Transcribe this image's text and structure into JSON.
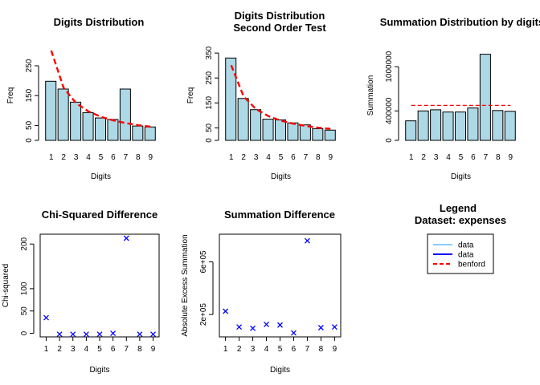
{
  "colors": {
    "bar_fill": "#add8e6",
    "stroke": "#000000",
    "benford": "#ff0000",
    "data_light": "#87cefa",
    "data_dark": "#0000ff",
    "points": "#0000ff"
  },
  "chart_data": [
    {
      "type": "bar",
      "title": [
        "Digits Distribution"
      ],
      "xlabel": "Digits",
      "ylabel": "Freq",
      "categories": [
        "1",
        "2",
        "3",
        "4",
        "5",
        "6",
        "7",
        "8",
        "9"
      ],
      "values": [
        198,
        172,
        128,
        93,
        75,
        70,
        172,
        48,
        45
      ],
      "benford": [
        301,
        176,
        125,
        97,
        79,
        67,
        58,
        51,
        46
      ],
      "ylim": [
        0,
        301
      ],
      "yticks": [
        0,
        50,
        150,
        250
      ],
      "yticklabels": [
        "0",
        "50",
        "150",
        "250"
      ]
    },
    {
      "type": "bar",
      "title": [
        "Digits Distribution",
        "Second Order Test"
      ],
      "xlabel": "Digits",
      "ylabel": "Freq",
      "categories": [
        "1",
        "2",
        "3",
        "4",
        "5",
        "6",
        "7",
        "8",
        "9"
      ],
      "values": [
        330,
        168,
        123,
        85,
        82,
        70,
        62,
        47,
        41
      ],
      "benford": [
        301,
        176,
        125,
        97,
        79,
        67,
        58,
        51,
        46
      ],
      "ylim": [
        0,
        360
      ],
      "yticks": [
        0,
        50,
        150,
        250,
        350
      ],
      "yticklabels": [
        "0",
        "50",
        "150",
        "250",
        "350"
      ]
    },
    {
      "type": "bar",
      "title": [
        "Summation Distribution by digits"
      ],
      "xlabel": "Digits",
      "ylabel": "Summation",
      "categories": [
        "1",
        "2",
        "3",
        "4",
        "5",
        "6",
        "7",
        "8",
        "9"
      ],
      "values": [
        265000,
        400000,
        415000,
        385000,
        385000,
        440000,
        1170000,
        405000,
        395000
      ],
      "benford_line": 475000,
      "ylim": [
        0,
        1220000
      ],
      "yticks": [
        0,
        400000,
        1000000
      ],
      "yticklabels": [
        "0",
        "400000",
        "1000000"
      ]
    },
    {
      "type": "scatter",
      "title": [
        "Chi-Squared Difference"
      ],
      "xlabel": "Digits",
      "ylabel": "Chi-squared",
      "x": [
        1,
        2,
        3,
        4,
        5,
        6,
        7,
        8,
        9
      ],
      "y": [
        35,
        -2,
        -2,
        -2,
        -2,
        0,
        213,
        -2,
        -2
      ],
      "marker": "x",
      "xlim": [
        0.55,
        9.45
      ],
      "ylim": [
        -8,
        222
      ],
      "xticks": [
        1,
        2,
        3,
        4,
        5,
        6,
        7,
        8,
        9
      ],
      "yticks": [
        0,
        50,
        100,
        200
      ],
      "yticklabels": [
        "0",
        "50",
        "100",
        "200"
      ]
    },
    {
      "type": "scatter",
      "title": [
        "Summation Difference"
      ],
      "xlabel": "Digits",
      "ylabel": "Absolute Excess Summation",
      "x": [
        1,
        2,
        3,
        4,
        5,
        6,
        7,
        8,
        9
      ],
      "y": [
        225000,
        105000,
        95000,
        125000,
        120000,
        60000,
        760000,
        100000,
        105000
      ],
      "marker": "x",
      "xlim": [
        0.55,
        9.45
      ],
      "ylim": [
        30000,
        810000
      ],
      "xticks": [
        1,
        2,
        3,
        4,
        5,
        6,
        7,
        8,
        9
      ],
      "yticks": [
        200000,
        600000
      ],
      "yticklabels": [
        "2e+05",
        "6e+05"
      ]
    }
  ],
  "legend": {
    "title": "Legend",
    "subtitle": "Dataset: expenses",
    "entries": [
      {
        "label": "data",
        "color": "#87cefa",
        "style": "solid"
      },
      {
        "label": "data",
        "color": "#0000ff",
        "style": "solid"
      },
      {
        "label": "benford",
        "color": "#ff0000",
        "style": "dashed"
      }
    ]
  }
}
